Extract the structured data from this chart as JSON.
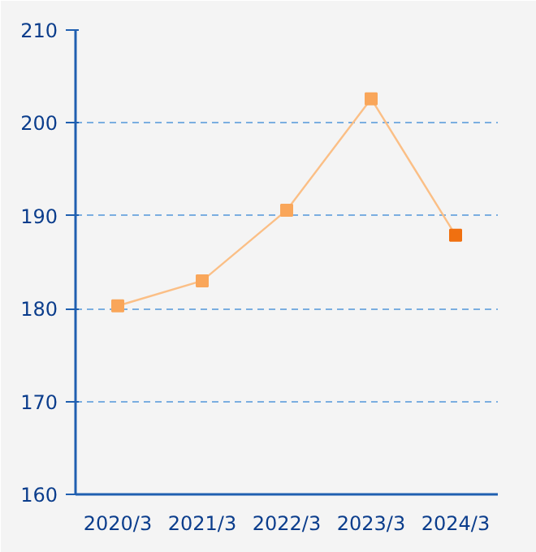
{
  "chart_data": {
    "type": "line",
    "categories": [
      "2020/3",
      "2021/3",
      "2022/3",
      "2023/3",
      "2024/3"
    ],
    "series": [
      {
        "color": "#fbbf86",
        "colors": [
          "#f9a65a",
          "#f9a65a",
          "#f9a65a",
          "#f9a65a",
          "#f07010"
        ],
        "values": [
          180.3,
          183.0,
          190.6,
          202.6,
          187.9
        ]
      }
    ],
    "ylim": [
      160,
      210
    ],
    "yticks": [
      160,
      170,
      180,
      190,
      200,
      210
    ],
    "grid": "y",
    "marker": "square",
    "line_style": "solid"
  }
}
